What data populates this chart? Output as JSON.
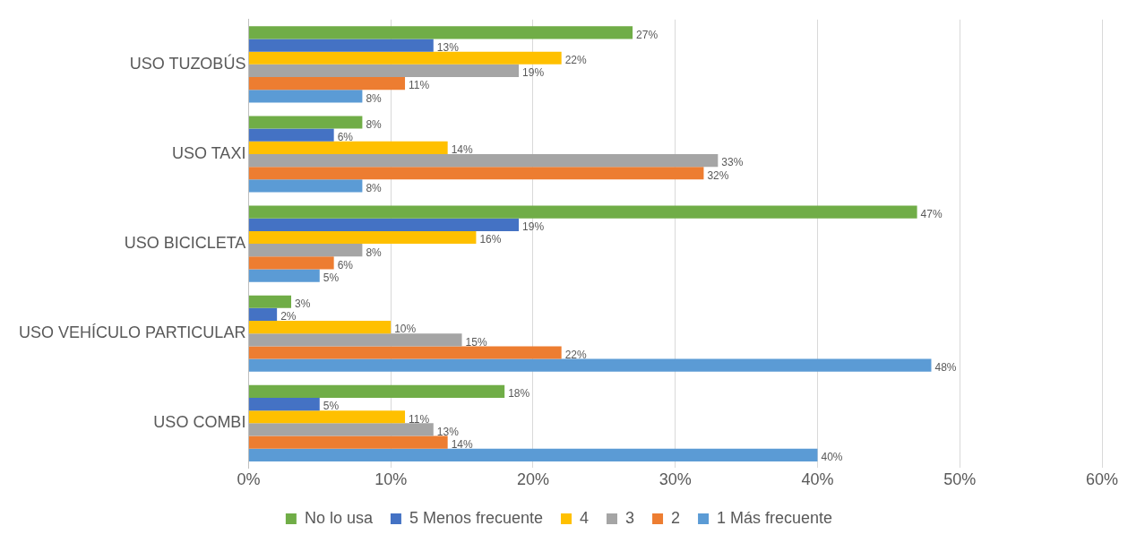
{
  "chart_data": {
    "type": "bar",
    "orientation": "horizontal",
    "categories": [
      "USO TUZOBÚS",
      "USO TAXI",
      "USO BICICLETA",
      "USO VEHÍCULO PARTICULAR",
      "USO COMBI"
    ],
    "series": [
      {
        "name": "No lo usa",
        "color": "#70ad47",
        "values": [
          27,
          8,
          47,
          3,
          18
        ],
        "value_labels": [
          "27%",
          "8%",
          "47%",
          "3%",
          "18%"
        ]
      },
      {
        "name": "5 Menos frecuente",
        "color": "#4472c4",
        "values": [
          13,
          6,
          19,
          2,
          5
        ],
        "value_labels": [
          "13%",
          "6%",
          "19%",
          "2%",
          "5%"
        ]
      },
      {
        "name": "4",
        "color": "#ffc000",
        "values": [
          22,
          14,
          16,
          10,
          11
        ],
        "value_labels": [
          "22%",
          "14%",
          "16%",
          "10%",
          "11%"
        ]
      },
      {
        "name": "3",
        "color": "#a5a5a5",
        "values": [
          19,
          33,
          8,
          15,
          13
        ],
        "value_labels": [
          "19%",
          "33%",
          "8%",
          "15%",
          "13%"
        ]
      },
      {
        "name": "2",
        "color": "#ed7d31",
        "values": [
          11,
          32,
          6,
          22,
          14
        ],
        "value_labels": [
          "11%",
          "32%",
          "6%",
          "22%",
          "14%"
        ]
      },
      {
        "name": "1 Más frecuente",
        "color": "#5b9bd5",
        "values": [
          8,
          8,
          5,
          48,
          40
        ],
        "value_labels": [
          "8%",
          "8%",
          "5%",
          "48%",
          "40%"
        ]
      }
    ],
    "xlim": [
      0,
      60
    ],
    "xticks": [
      {
        "value": 0,
        "label": "0%"
      },
      {
        "value": 10,
        "label": "10%"
      },
      {
        "value": 20,
        "label": "20%"
      },
      {
        "value": 30,
        "label": "30%"
      },
      {
        "value": 40,
        "label": "40%"
      },
      {
        "value": 50,
        "label": "50%"
      },
      {
        "value": 60,
        "label": "60%"
      }
    ],
    "grid": "x",
    "legend": "bottom"
  }
}
